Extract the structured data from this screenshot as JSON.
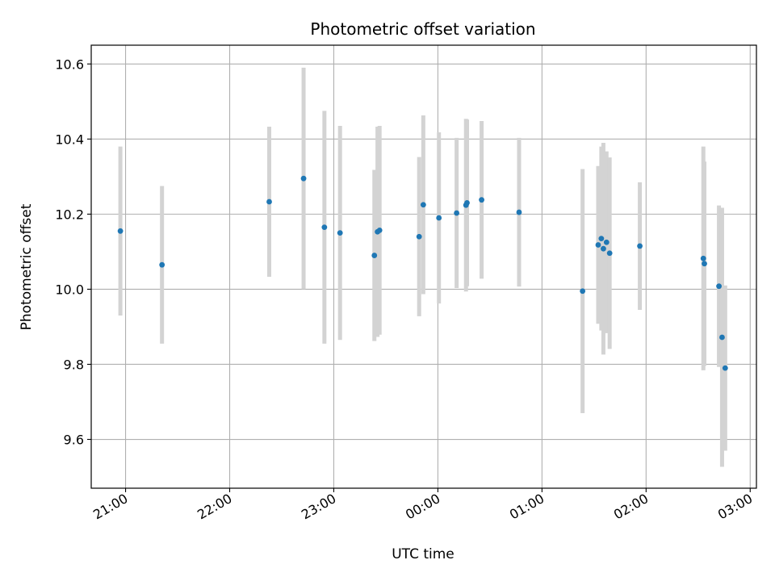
{
  "chart_data": {
    "type": "scatter",
    "title": "Photometric offset variation",
    "xlabel": "UTC time",
    "ylabel": "Photometric offset",
    "grid": true,
    "x_unit": "hours since 00:00 UTC",
    "xlim": [
      -3.33,
      3.06
    ],
    "ylim": [
      9.47,
      10.65
    ],
    "x_ticks": [
      {
        "value": -3,
        "label": "21:00"
      },
      {
        "value": -2,
        "label": "22:00"
      },
      {
        "value": -1,
        "label": "23:00"
      },
      {
        "value": 0,
        "label": "00:00"
      },
      {
        "value": 1,
        "label": "01:00"
      },
      {
        "value": 2,
        "label": "02:00"
      },
      {
        "value": 3,
        "label": "03:00"
      }
    ],
    "y_ticks": [
      {
        "value": 9.6,
        "label": "9.6"
      },
      {
        "value": 9.8,
        "label": "9.8"
      },
      {
        "value": 10.0,
        "label": "10.0"
      },
      {
        "value": 10.2,
        "label": "10.2"
      },
      {
        "value": 10.4,
        "label": "10.4"
      },
      {
        "value": 10.6,
        "label": "10.6"
      }
    ],
    "series": [
      {
        "name": "Photometric offset",
        "marker_color": "#1f77b4",
        "errorbar_color": "#d3d3d3",
        "points": [
          {
            "x": -3.05,
            "y": 10.155,
            "err": 0.225
          },
          {
            "x": -2.65,
            "y": 10.065,
            "err": 0.21
          },
          {
            "x": -1.62,
            "y": 10.233,
            "err": 0.2
          },
          {
            "x": -1.29,
            "y": 10.295,
            "err": 0.295
          },
          {
            "x": -1.09,
            "y": 10.165,
            "err": 0.31
          },
          {
            "x": -0.94,
            "y": 10.15,
            "err": 0.285
          },
          {
            "x": -0.61,
            "y": 10.09,
            "err": 0.228
          },
          {
            "x": -0.58,
            "y": 10.153,
            "err": 0.28
          },
          {
            "x": -0.56,
            "y": 10.157,
            "err": 0.278
          },
          {
            "x": -0.18,
            "y": 10.14,
            "err": 0.212
          },
          {
            "x": -0.14,
            "y": 10.225,
            "err": 0.238
          },
          {
            "x": 0.01,
            "y": 10.19,
            "err": 0.228
          },
          {
            "x": 0.18,
            "y": 10.203,
            "err": 0.2
          },
          {
            "x": 0.27,
            "y": 10.224,
            "err": 0.23
          },
          {
            "x": 0.28,
            "y": 10.23,
            "err": 0.222
          },
          {
            "x": 0.42,
            "y": 10.238,
            "err": 0.21
          },
          {
            "x": 0.78,
            "y": 10.205,
            "err": 0.198
          },
          {
            "x": 1.39,
            "y": 9.995,
            "err": 0.325
          },
          {
            "x": 1.54,
            "y": 10.118,
            "err": 0.21
          },
          {
            "x": 1.57,
            "y": 10.135,
            "err": 0.245
          },
          {
            "x": 1.59,
            "y": 10.108,
            "err": 0.282
          },
          {
            "x": 1.62,
            "y": 10.125,
            "err": 0.242
          },
          {
            "x": 1.65,
            "y": 10.096,
            "err": 0.255
          },
          {
            "x": 1.94,
            "y": 10.115,
            "err": 0.17
          },
          {
            "x": 2.55,
            "y": 10.082,
            "err": 0.298
          },
          {
            "x": 2.56,
            "y": 10.068,
            "err": 0.272
          },
          {
            "x": 2.7,
            "y": 10.008,
            "err": 0.215
          },
          {
            "x": 2.73,
            "y": 9.872,
            "err": 0.345
          },
          {
            "x": 2.76,
            "y": 9.79,
            "err": 0.22
          }
        ]
      }
    ]
  }
}
